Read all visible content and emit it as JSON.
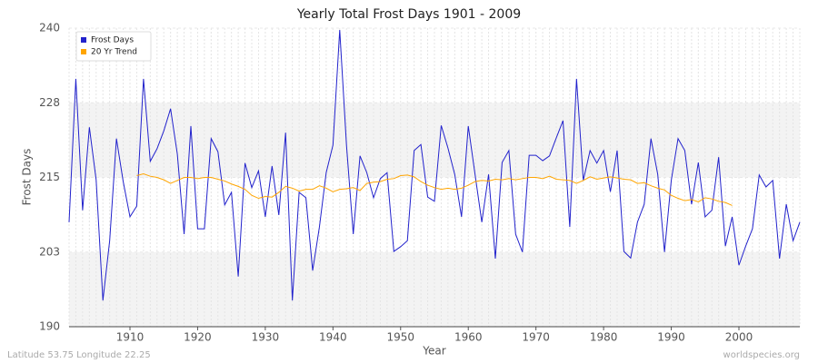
{
  "chart_data": {
    "type": "line",
    "title": "Yearly Total Frost Days 1901 - 2009",
    "xlabel": "Year",
    "ylabel": "Frost Days",
    "footer_left": "Latitude 53.75 Longitude 22.25",
    "footer_right": "worldspecies.org",
    "legend": "top-left",
    "grid": true,
    "xlim": [
      1901,
      2009
    ],
    "xticks": [
      1910,
      1920,
      1930,
      1940,
      1950,
      1960,
      1970,
      1980,
      1990,
      2000
    ],
    "ylim": [
      190,
      240
    ],
    "yticks": [
      190,
      {
        "value": 202.5,
        "label": "203"
      },
      215,
      {
        "value": 227.5,
        "label": "228"
      },
      240
    ],
    "x": [
      1901,
      1902,
      1903,
      1904,
      1905,
      1906,
      1907,
      1908,
      1909,
      1910,
      1911,
      1912,
      1913,
      1914,
      1915,
      1916,
      1917,
      1918,
      1919,
      1920,
      1921,
      1922,
      1923,
      1924,
      1925,
      1926,
      1927,
      1928,
      1929,
      1930,
      1931,
      1932,
      1933,
      1934,
      1935,
      1936,
      1937,
      1938,
      1939,
      1940,
      1941,
      1942,
      1943,
      1944,
      1945,
      1946,
      1947,
      1948,
      1949,
      1950,
      1951,
      1952,
      1953,
      1954,
      1955,
      1956,
      1957,
      1958,
      1959,
      1960,
      1961,
      1962,
      1963,
      1964,
      1965,
      1966,
      1967,
      1968,
      1969,
      1970,
      1971,
      1972,
      1973,
      1974,
      1975,
      1976,
      1977,
      1978,
      1979,
      1980,
      1981,
      1982,
      1983,
      1984,
      1985,
      1986,
      1987,
      1988,
      1989,
      1990,
      1991,
      1992,
      1993,
      1994,
      1995,
      1996,
      1997,
      1998,
      1999,
      2000,
      2001,
      2002,
      2003,
      2004,
      2005,
      2006,
      2007,
      2008,
      2009
    ],
    "series": [
      {
        "name": "Frost Days",
        "color": "#2222cc",
        "values": [
          207.5,
          231.5,
          209.5,
          223.4,
          214.6,
          194.4,
          204.4,
          221.5,
          214.3,
          208.4,
          210.2,
          231.5,
          217.7,
          219.8,
          222.8,
          226.5,
          218.9,
          205.5,
          223.6,
          206.4,
          206.4,
          221.5,
          219.3,
          210.4,
          212.5,
          198.4,
          217.4,
          213.3,
          216.1,
          208.4,
          216.9,
          208.7,
          222.5,
          194.4,
          212.5,
          211.6,
          199.4,
          206.7,
          215.8,
          220.4,
          239.7,
          220.4,
          205.5,
          218.6,
          215.8,
          211.6,
          214.8,
          215.8,
          202.6,
          203.4,
          204.4,
          219.5,
          220.5,
          211.7,
          211,
          223.7,
          219.9,
          215.5,
          208.4,
          223.6,
          215.5,
          207.5,
          215.5,
          201.4,
          217.5,
          219.5,
          205.5,
          202.5,
          218.7,
          218.7,
          217.8,
          218.6,
          221.6,
          224.5,
          206.7,
          231.5,
          214.5,
          219.5,
          217.4,
          219.5,
          212.6,
          219.5,
          202.6,
          201.5,
          207.5,
          210.5,
          221.5,
          215.5,
          202.5,
          214.5,
          221.5,
          219.5,
          210.5,
          217.5,
          208.4,
          209.5,
          218.4,
          203.5,
          208.4,
          200.3,
          203.5,
          206.4,
          215.4,
          213.4,
          214.5,
          201.4,
          210.5,
          204.4,
          207.5
        ]
      },
      {
        "name": "20 Yr Trend",
        "color": "#ffa500",
        "values": [
          null,
          null,
          null,
          null,
          null,
          null,
          null,
          null,
          null,
          null,
          215.3,
          215.6,
          215.2,
          215,
          214.6,
          214,
          214.5,
          215,
          215,
          214.8,
          215,
          215,
          214.7,
          214.4,
          213.9,
          213.5,
          213,
          212,
          211.5,
          211.8,
          211.7,
          212.5,
          213.5,
          213.2,
          212.7,
          213,
          213,
          213.6,
          213.2,
          212.6,
          213,
          213.1,
          213.3,
          212.8,
          214,
          214.2,
          214.3,
          214.7,
          214.8,
          215.3,
          215.4,
          215.1,
          214.3,
          213.7,
          213.3,
          213,
          213.2,
          213,
          213.2,
          213.7,
          214.3,
          214.5,
          214.4,
          214.7,
          214.6,
          214.8,
          214.6,
          214.8,
          215,
          215,
          214.8,
          215.2,
          214.7,
          214.6,
          214.5,
          214,
          214.5,
          215.1,
          214.7,
          214.9,
          215.1,
          214.9,
          214.7,
          214.6,
          214,
          214.1,
          213.6,
          213.2,
          212.9,
          212,
          211.5,
          211.1,
          211.3,
          210.9,
          211.6,
          211.4,
          211,
          210.8,
          210.3,
          null,
          null,
          null,
          null,
          null,
          null,
          null,
          null,
          null,
          null
        ]
      }
    ]
  }
}
